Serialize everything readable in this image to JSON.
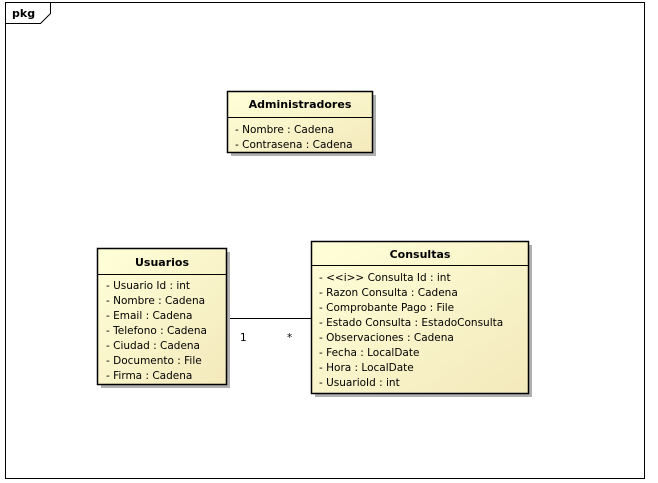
{
  "package": {
    "label": "pkg"
  },
  "colors": {
    "class_fill": "#FFFFCC",
    "class_fill_edge": "#F3E7B8",
    "border": "#000000",
    "shadow": "#B0B0B0"
  },
  "classes": {
    "administradores": {
      "name": "Administradores",
      "attributes": [
        "- Nombre : Cadena",
        "- Contrasena : Cadena"
      ]
    },
    "usuarios": {
      "name": "Usuarios",
      "attributes": [
        "- Usuario Id : int",
        "- Nombre : Cadena",
        "- Email : Cadena",
        "- Telefono : Cadena",
        "- Ciudad : Cadena",
        "- Documento : File",
        "- Firma : Cadena"
      ]
    },
    "consultas": {
      "name": "Consultas",
      "attributes": [
        "- <<i>> Consulta Id : int",
        "- Razon Consulta : Cadena",
        "- Comprobante Pago : File",
        "- Estado Consulta : EstadoConsulta",
        "- Observaciones : Cadena",
        "- Fecha : LocalDate",
        "- Hora : LocalDate",
        "- UsuarioId : int"
      ]
    }
  },
  "association": {
    "usuarios_end": "1",
    "consultas_end": "*"
  }
}
